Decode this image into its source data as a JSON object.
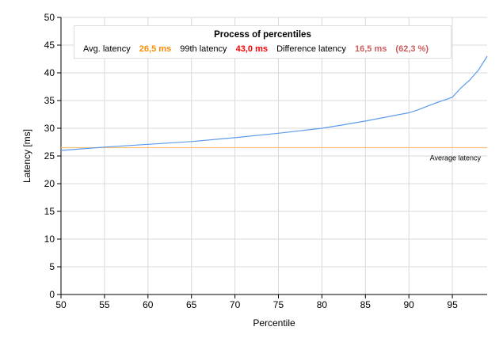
{
  "chart_data": {
    "type": "line",
    "xlabel": "Percentile",
    "ylabel": "Latency [ms]",
    "xlim": [
      50,
      99
    ],
    "ylim": [
      0,
      50
    ],
    "xticks": [
      50,
      55,
      60,
      65,
      70,
      75,
      80,
      85,
      90,
      95
    ],
    "yticks": [
      0,
      5,
      10,
      15,
      20,
      25,
      30,
      35,
      40,
      45,
      50
    ],
    "grid": true,
    "series": [
      {
        "color": "#5b9bec",
        "x": [
          50,
          55,
          60,
          65,
          70,
          75,
          80,
          82,
          85,
          90,
          91,
          93,
          95,
          96,
          97,
          98,
          99
        ],
        "y": [
          26,
          26.6,
          27.1,
          27.6,
          28.3,
          29.1,
          30.0,
          30.5,
          31.3,
          32.8,
          33.3,
          34.5,
          35.6,
          37.3,
          38.7,
          40.5,
          43.0
        ]
      }
    ],
    "reference_line": {
      "value": 26.5,
      "label": "Average latency",
      "color": "#f8c27a"
    }
  },
  "legend": {
    "title": "Process of percentiles",
    "avg_label": "Avg. latency",
    "avg_value": "26,5 ms",
    "avg_color": "#ff8c00",
    "p99_label": "99th latency",
    "p99_value": "43,0 ms",
    "p99_color": "#ff0000",
    "diff_label": "Difference latency",
    "diff_value": "16,5 ms",
    "diff_pct": "(62,3 %)",
    "diff_color": "#cd5c5c"
  }
}
